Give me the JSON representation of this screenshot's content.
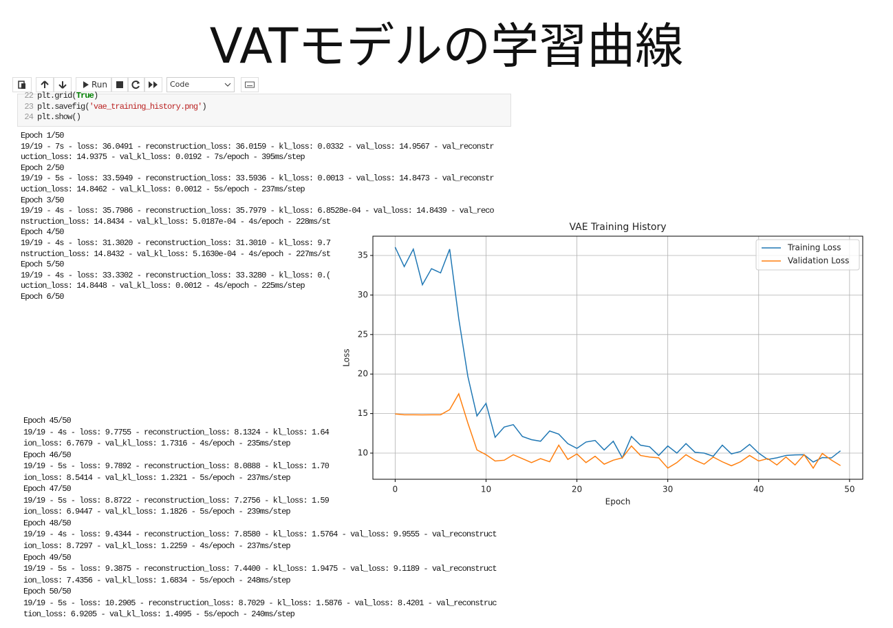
{
  "slide_title": "VATモデルの学習曲線",
  "toolbar": {
    "run": "Run",
    "cell_type": "Code"
  },
  "code": {
    "line_numbers": [
      22,
      23,
      24
    ],
    "lines": [
      [
        "plt.grid(",
        "True",
        ")"
      ],
      [
        "plt.savefig(",
        "'vae_training_history.png'",
        ")"
      ],
      [
        "plt.show()"
      ]
    ]
  },
  "output_top": [
    "Epoch 1/50",
    "19/19 - 7s - loss: 36.0491 - reconstruction_loss: 36.0159 - kl_loss: 0.0332 - val_loss: 14.9567 - val_reconstr",
    "uction_loss: 14.9375 - val_kl_loss: 0.0192 - 7s/epoch - 395ms/step",
    "Epoch 2/50",
    "19/19 - 5s - loss: 33.5949 - reconstruction_loss: 33.5936 - kl_loss: 0.0013 - val_loss: 14.8473 - val_reconstr",
    "uction_loss: 14.8462 - val_kl_loss: 0.0012 - 5s/epoch - 237ms/step",
    "Epoch 3/50",
    "19/19 - 4s - loss: 35.7986 - reconstruction_loss: 35.7979 - kl_loss: 6.8528e-04 - val_loss: 14.8439 - val_reco",
    "nstruction_loss: 14.8434 - val_kl_loss: 5.0187e-04 - 4s/epoch - 228ms/st",
    "Epoch 4/50",
    "19/19 - 4s - loss: 31.3020 - reconstruction_loss: 31.3010 - kl_loss: 9.7",
    "nstruction_loss: 14.8432 - val_kl_loss: 5.1630e-04 - 4s/epoch - 227ms/st",
    "Epoch 5/50",
    "19/19 - 4s - loss: 33.3302 - reconstruction_loss: 33.3280 - kl_loss: 0.(",
    "uction_loss: 14.8448 - val_kl_loss: 0.0012 - 4s/epoch - 225ms/step",
    "Epoch 6/50"
  ],
  "output_bottom": [
    "Epoch 45/50",
    "19/19 - 4s - loss: 9.7755 - reconstruction_loss: 8.1324 - kl_loss: 1.64",
    "ion_loss: 6.7679 - val_kl_loss: 1.7316 - 4s/epoch - 235ms/step",
    "Epoch 46/50",
    "19/19 - 5s - loss: 9.7892 - reconstruction_loss: 8.0888 - kl_loss: 1.70",
    "ion_loss: 8.5414 - val_kl_loss: 1.2321 - 5s/epoch - 237ms/step",
    "Epoch 47/50",
    "19/19 - 5s - loss: 8.8722 - reconstruction_loss: 7.2756 - kl_loss: 1.59",
    "ion_loss: 6.9447 - val_kl_loss: 1.1826 - 5s/epoch - 239ms/step",
    "Epoch 48/50",
    "19/19 - 4s - loss: 9.4344 - reconstruction_loss: 7.8580 - kl_loss: 1.5764 - val_loss: 9.9555 - val_reconstruct",
    "ion_loss: 8.7297 - val_kl_loss: 1.2259 - 4s/epoch - 237ms/step",
    "Epoch 49/50",
    "19/19 - 5s - loss: 9.3875 - reconstruction_loss: 7.4400 - kl_loss: 1.9475 - val_loss: 9.1189 - val_reconstruct",
    "ion_loss: 7.4356 - val_kl_loss: 1.6834 - 5s/epoch - 248ms/step",
    "Epoch 50/50",
    "19/19 - 5s - loss: 10.2905 - reconstruction_loss: 8.7029 - kl_loss: 1.5876 - val_loss: 8.4201 - val_reconstruc",
    "tion_loss: 6.9205 - val_kl_loss: 1.4995 - 5s/epoch - 240ms/step"
  ],
  "chart_data": {
    "type": "line",
    "title": "VAE Training History",
    "x_label": "Epoch",
    "y_label": "Loss",
    "x": [
      0,
      1,
      2,
      3,
      4,
      5,
      6,
      7,
      8,
      9,
      10,
      11,
      12,
      13,
      14,
      15,
      16,
      17,
      18,
      19,
      20,
      21,
      22,
      23,
      24,
      25,
      26,
      27,
      28,
      29,
      30,
      31,
      32,
      33,
      34,
      35,
      36,
      37,
      38,
      39,
      40,
      41,
      42,
      43,
      44,
      45,
      46,
      47,
      48,
      49
    ],
    "series": [
      {
        "name": "Training Loss",
        "color": "#1f77b4",
        "values": [
          36.0491,
          33.5949,
          35.7986,
          31.302,
          33.3302,
          32.8,
          35.8,
          27.0,
          19.7,
          14.7,
          16.3,
          12.0,
          13.3,
          13.6,
          12.1,
          11.7,
          11.5,
          12.8,
          12.4,
          11.2,
          10.6,
          11.4,
          11.6,
          10.4,
          11.5,
          9.4,
          12.1,
          11.0,
          10.8,
          9.7,
          10.9,
          10.0,
          11.2,
          10.1,
          10.0,
          9.6,
          11.0,
          9.9,
          10.2,
          11.1,
          10.0,
          9.2,
          9.4,
          9.7,
          9.7755,
          9.7892,
          8.8722,
          9.4344,
          9.3875,
          10.2905
        ]
      },
      {
        "name": "Validation Loss",
        "color": "#ff7f0e",
        "values": [
          14.9567,
          14.8473,
          14.8439,
          14.84,
          14.8448,
          14.85,
          15.5,
          17.5,
          13.8,
          10.4,
          9.8,
          9.0,
          9.1,
          9.8,
          9.3,
          8.8,
          9.3,
          8.9,
          11.0,
          9.2,
          9.9,
          8.8,
          9.6,
          8.6,
          9.1,
          9.4,
          10.9,
          9.7,
          9.5,
          9.4,
          8.1,
          8.8,
          9.8,
          9.1,
          8.6,
          9.5,
          8.9,
          8.4,
          8.9,
          9.7,
          9.0,
          9.3,
          8.5,
          9.5,
          8.5,
          9.8,
          8.1,
          9.9555,
          9.1189,
          8.4201
        ]
      }
    ],
    "xlim": [
      -2.45,
      51.45
    ],
    "ylim": [
      6.69,
      37.44
    ],
    "xticks": [
      0,
      10,
      20,
      30,
      40,
      50
    ],
    "yticks": [
      10,
      15,
      20,
      25,
      30,
      35
    ],
    "grid": true,
    "legend": "upper-right"
  }
}
